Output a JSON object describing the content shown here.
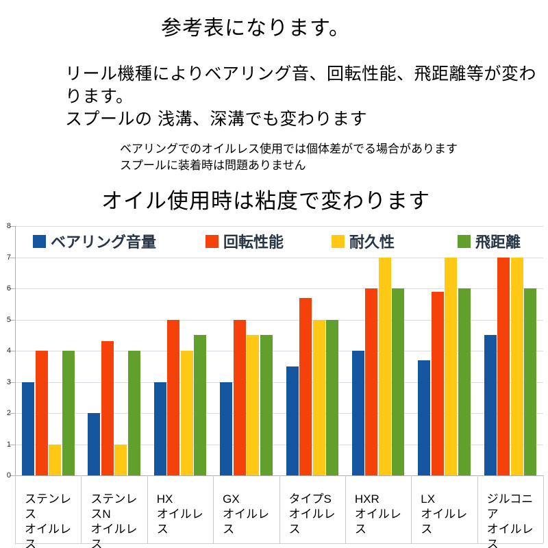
{
  "header": {
    "title": "参考表になります。",
    "line1": "リール機種によりベアリング音、回転性能、飛距離等が変わります。",
    "line2": "スプールの 浅溝、深溝でも変わります",
    "note1": "ベアリングでのオイルレス使用では個体差がでる場合があります",
    "note2": "スプールに装着時は問題ありません",
    "chart_title": "オイル使用時は粘度で変わります"
  },
  "colors": {
    "bearing_noise": "#15569E",
    "rotation": "#F5420A",
    "durability": "#FFC814",
    "distance": "#61A02C",
    "gridline": "#d9dce2",
    "axis": "#b0b0b0"
  },
  "chart_data": {
    "type": "bar",
    "title": "",
    "xlabel": "",
    "ylabel": "",
    "ylim": [
      0,
      8
    ],
    "ytick_step": 1,
    "grid": true,
    "legend_position": "top",
    "categories": [
      "ステンレス\nオイルレス",
      "ステンレスN\nオイルレス",
      "HX\nオイルレス",
      "GX\nオイルレス",
      "タイプS\nオイルレス",
      "HXR\nオイルレス",
      "LX\nオイルレス",
      "ジルコニア\nオイルレス"
    ],
    "series": [
      {
        "name": "ベアリング音量",
        "color": "#15569E",
        "values": [
          3,
          2,
          3,
          3,
          3.5,
          4,
          3.7,
          4.5
        ]
      },
      {
        "name": "回転性能",
        "color": "#F5420A",
        "values": [
          4,
          4.3,
          5,
          5,
          5.7,
          6,
          5.9,
          7
        ]
      },
      {
        "name": "耐久性",
        "color": "#FFC814",
        "values": [
          1,
          1,
          4,
          4.5,
          5,
          7,
          7,
          7
        ]
      },
      {
        "name": "飛距離",
        "color": "#61A02C",
        "values": [
          4,
          4,
          4.5,
          4.5,
          5,
          6,
          6,
          6
        ]
      }
    ]
  }
}
